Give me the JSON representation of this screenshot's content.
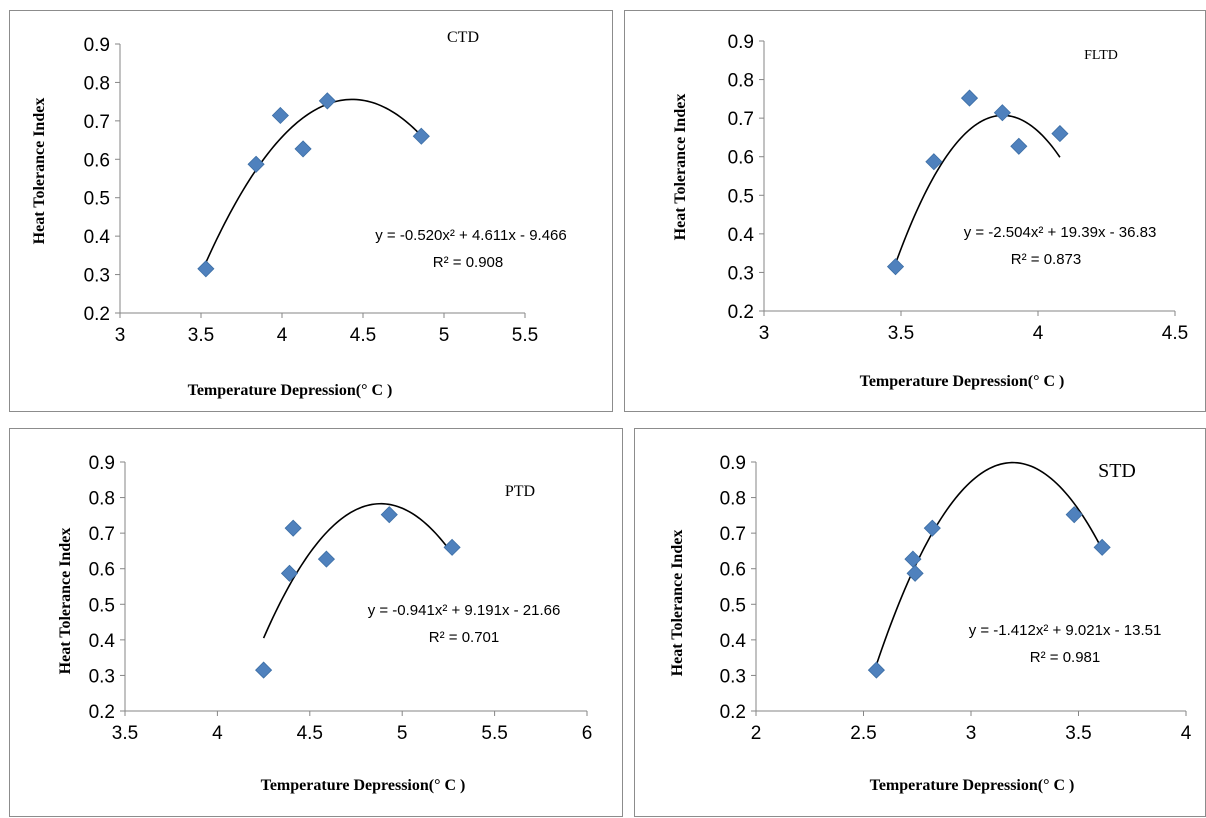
{
  "chart_data": [
    {
      "type": "scatter",
      "title": "CTD",
      "xlabel": "Temperature Depression(° C )",
      "ylabel": "Heat Tolerance Index",
      "xlim": [
        3,
        5.5
      ],
      "ylim": [
        0.2,
        0.9
      ],
      "x_ticks": [
        "3",
        "3.5",
        "4",
        "4.5",
        "5",
        "5.5"
      ],
      "y_ticks": [
        "0.2",
        "0.3",
        "0.4",
        "0.5",
        "0.6",
        "0.7",
        "0.8",
        "0.9"
      ],
      "marker_color": "#4f81bd",
      "points": [
        {
          "x": 3.53,
          "y": 0.315
        },
        {
          "x": 3.84,
          "y": 0.587
        },
        {
          "x": 3.99,
          "y": 0.714
        },
        {
          "x": 4.13,
          "y": 0.627
        },
        {
          "x": 4.28,
          "y": 0.752
        },
        {
          "x": 4.86,
          "y": 0.66
        }
      ],
      "trendline": {
        "type": "polynomial",
        "coefficients": [
          -0.52,
          4.611,
          -9.466
        ],
        "x_range": [
          3.53,
          4.86
        ]
      },
      "equation": "y = -0.520x² + 4.611x - 9.466",
      "r2": "R² = 0.908"
    },
    {
      "type": "scatter",
      "title": "FLTD",
      "xlabel": "Temperature Depression(° C )",
      "ylabel": "Heat Tolerance Index",
      "xlim": [
        3,
        4.5
      ],
      "ylim": [
        0.2,
        0.9
      ],
      "x_ticks": [
        "3",
        "3.5",
        "4",
        "4.5"
      ],
      "y_ticks": [
        "0.2",
        "0.3",
        "0.4",
        "0.5",
        "0.6",
        "0.7",
        "0.8",
        "0.9"
      ],
      "marker_color": "#4f81bd",
      "points": [
        {
          "x": 3.48,
          "y": 0.315
        },
        {
          "x": 3.62,
          "y": 0.587
        },
        {
          "x": 3.75,
          "y": 0.752
        },
        {
          "x": 3.87,
          "y": 0.714
        },
        {
          "x": 3.93,
          "y": 0.627
        },
        {
          "x": 4.08,
          "y": 0.66
        }
      ],
      "trendline": {
        "type": "polynomial",
        "coefficients": [
          -2.504,
          19.39,
          -36.83
        ],
        "x_range": [
          3.48,
          4.08
        ]
      },
      "equation": "y = -2.504x² + 19.39x - 36.83",
      "r2": "R² = 0.873"
    },
    {
      "type": "scatter",
      "title": "PTD",
      "xlabel": "Temperature Depression(° C )",
      "ylabel": "Heat Tolerance Index",
      "xlim": [
        3.5,
        6
      ],
      "ylim": [
        0.2,
        0.9
      ],
      "x_ticks": [
        "3.5",
        "4",
        "4.5",
        "5",
        "5.5",
        "6"
      ],
      "y_ticks": [
        "0.2",
        "0.3",
        "0.4",
        "0.5",
        "0.6",
        "0.7",
        "0.8",
        "0.9"
      ],
      "marker_color": "#4f81bd",
      "points": [
        {
          "x": 4.25,
          "y": 0.315
        },
        {
          "x": 4.39,
          "y": 0.587
        },
        {
          "x": 4.41,
          "y": 0.714
        },
        {
          "x": 4.59,
          "y": 0.627
        },
        {
          "x": 4.93,
          "y": 0.752
        },
        {
          "x": 5.27,
          "y": 0.66
        }
      ],
      "trendline": {
        "type": "polynomial",
        "coefficients": [
          -0.941,
          9.191,
          -21.66
        ],
        "x_range": [
          4.25,
          5.27
        ]
      },
      "equation": "y = -0.941x² + 9.191x - 21.66",
      "r2": "R² = 0.701"
    },
    {
      "type": "scatter",
      "title": "STD",
      "xlabel": "Temperature Depression(° C )",
      "ylabel": "Heat Tolerance Index",
      "xlim": [
        2,
        4
      ],
      "ylim": [
        0.2,
        0.9
      ],
      "x_ticks": [
        "2",
        "2.5",
        "3",
        "3.5",
        "4"
      ],
      "y_ticks": [
        "0.2",
        "0.3",
        "0.4",
        "0.5",
        "0.6",
        "0.7",
        "0.8",
        "0.9"
      ],
      "marker_color": "#4f81bd",
      "points": [
        {
          "x": 2.56,
          "y": 0.315
        },
        {
          "x": 2.73,
          "y": 0.627
        },
        {
          "x": 2.74,
          "y": 0.587
        },
        {
          "x": 2.82,
          "y": 0.714
        },
        {
          "x": 3.48,
          "y": 0.752
        },
        {
          "x": 3.61,
          "y": 0.66
        }
      ],
      "trendline": {
        "type": "polynomial",
        "coefficients": [
          -1.412,
          9.021,
          -13.51
        ],
        "x_range": [
          2.56,
          3.61
        ]
      },
      "equation": "y = -1.412x² + 9.021x - 13.51",
      "r2": "R² = 0.981"
    }
  ]
}
